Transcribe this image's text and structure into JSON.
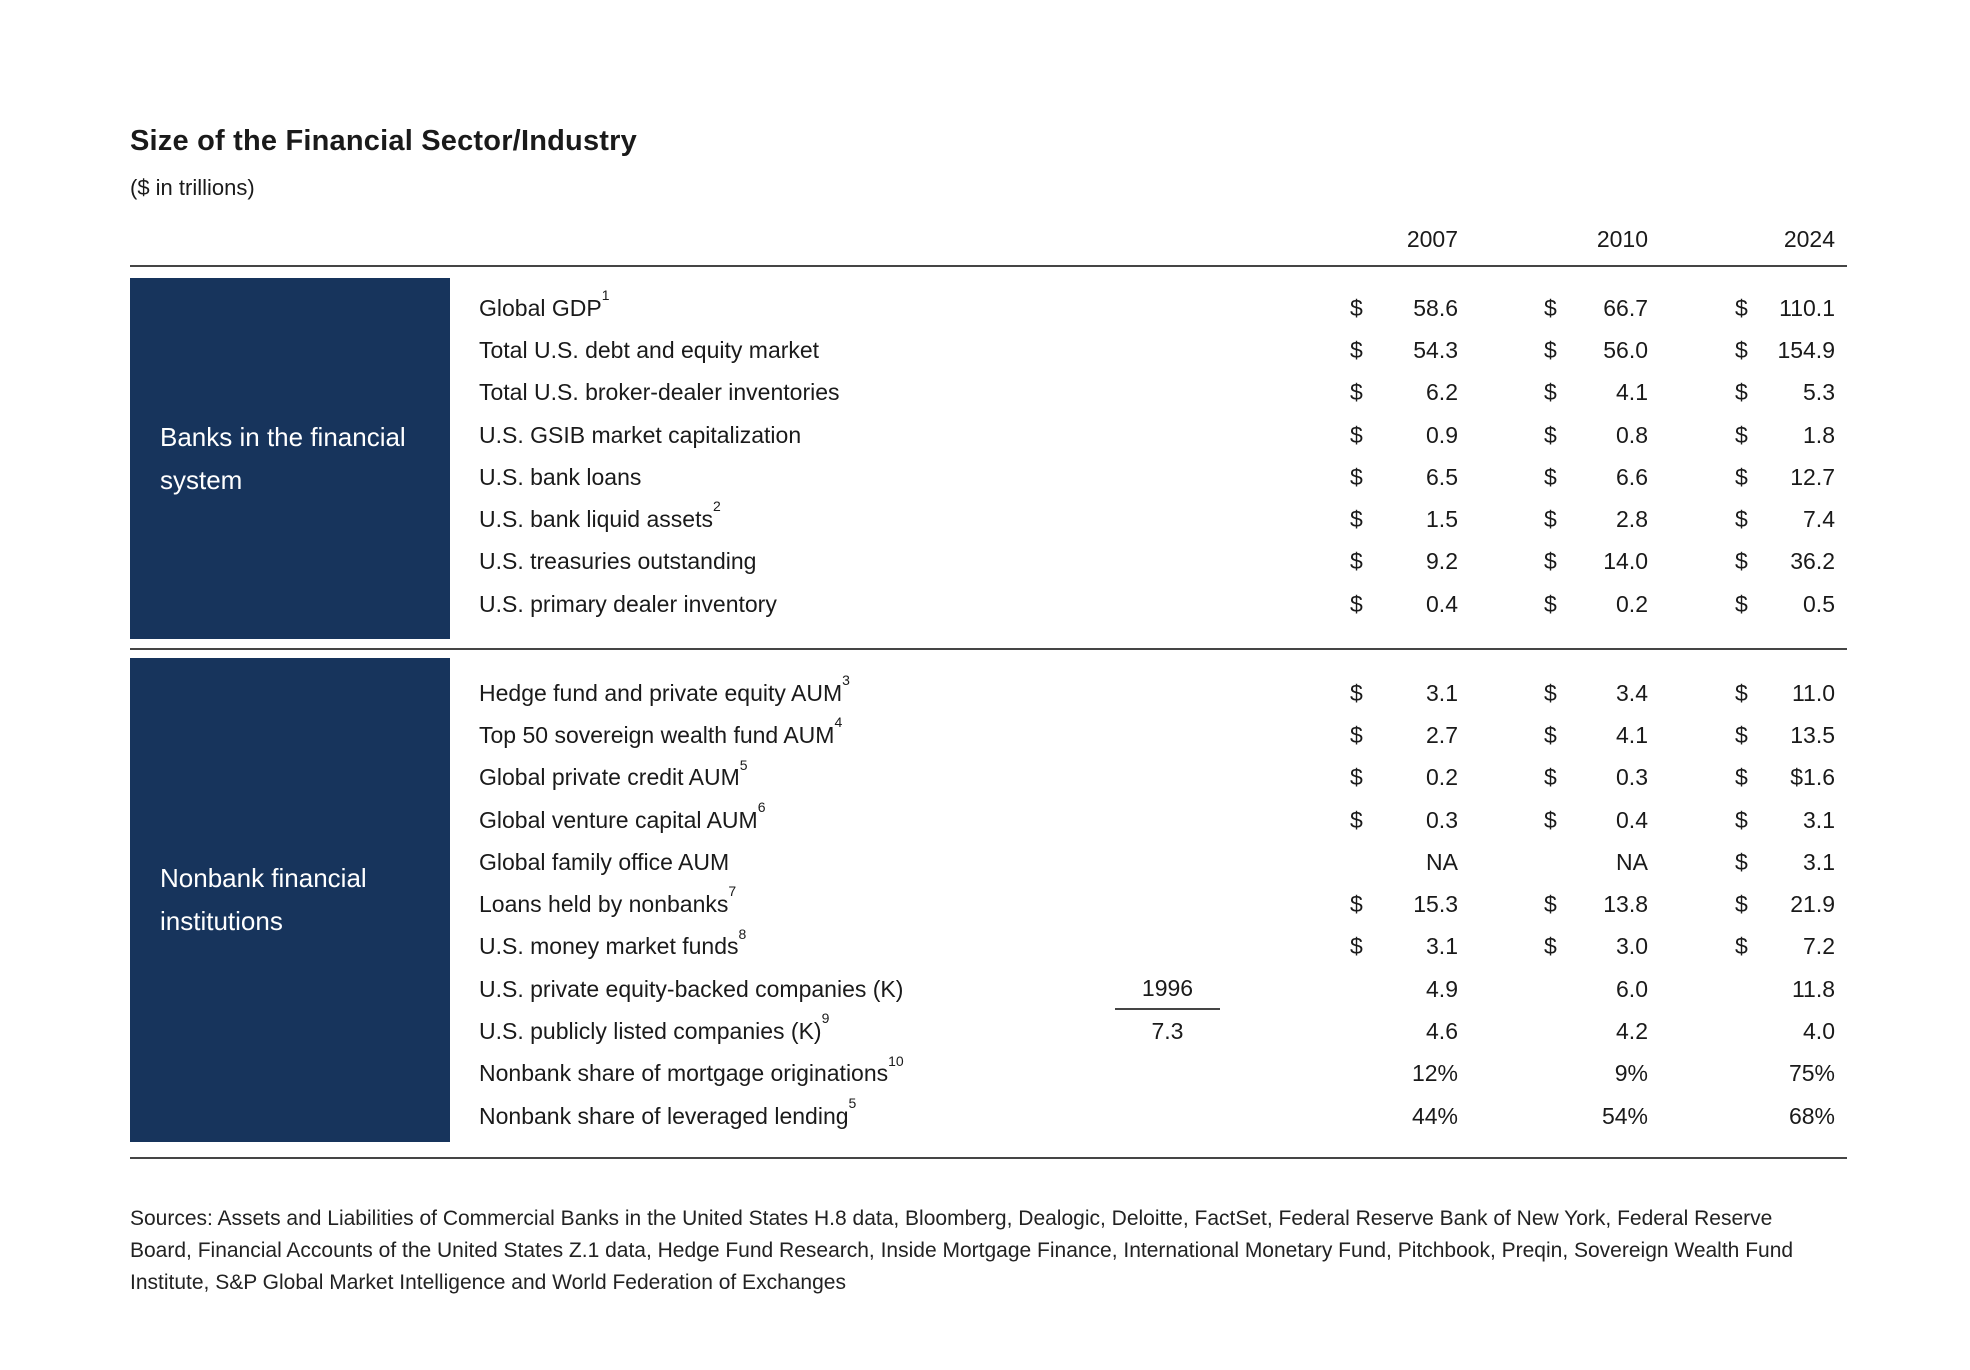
{
  "title": "Size of the Financial Sector/Industry",
  "subtitle": "($ in trillions)",
  "columns": [
    "2007",
    "2010",
    "2024"
  ],
  "colors": {
    "navy": "#17345C",
    "rule": "#454545",
    "text": "#1A1A1A"
  },
  "sections": [
    {
      "label": "Banks in the financial system",
      "rows": [
        {
          "label": "Global GDP",
          "footnote": "1",
          "values": [
            {
              "cur": "$",
              "val": "58.6"
            },
            {
              "cur": "$",
              "val": "66.7"
            },
            {
              "cur": "$",
              "val": "110.1"
            }
          ]
        },
        {
          "label": "Total U.S. debt and equity market",
          "footnote": "",
          "values": [
            {
              "cur": "$",
              "val": "54.3"
            },
            {
              "cur": "$",
              "val": "56.0"
            },
            {
              "cur": "$",
              "val": "154.9"
            }
          ]
        },
        {
          "label": "Total U.S. broker-dealer inventories",
          "footnote": "",
          "values": [
            {
              "cur": "$",
              "val": "6.2"
            },
            {
              "cur": "$",
              "val": "4.1"
            },
            {
              "cur": "$",
              "val": "5.3"
            }
          ]
        },
        {
          "label": "U.S. GSIB market capitalization",
          "footnote": "",
          "values": [
            {
              "cur": "$",
              "val": "0.9"
            },
            {
              "cur": "$",
              "val": "0.8"
            },
            {
              "cur": "$",
              "val": "1.8"
            }
          ]
        },
        {
          "label": "U.S. bank loans",
          "footnote": "",
          "values": [
            {
              "cur": "$",
              "val": "6.5"
            },
            {
              "cur": "$",
              "val": "6.6"
            },
            {
              "cur": "$",
              "val": "12.7"
            }
          ]
        },
        {
          "label": "U.S. bank liquid assets",
          "footnote": "2",
          "values": [
            {
              "cur": "$",
              "val": "1.5"
            },
            {
              "cur": "$",
              "val": "2.8"
            },
            {
              "cur": "$",
              "val": "7.4"
            }
          ]
        },
        {
          "label": "U.S. treasuries outstanding",
          "footnote": "",
          "values": [
            {
              "cur": "$",
              "val": "9.2"
            },
            {
              "cur": "$",
              "val": "14.0"
            },
            {
              "cur": "$",
              "val": "36.2"
            }
          ]
        },
        {
          "label": "U.S. primary dealer inventory",
          "footnote": "",
          "values": [
            {
              "cur": "$",
              "val": "0.4"
            },
            {
              "cur": "$",
              "val": "0.2"
            },
            {
              "cur": "$",
              "val": "0.5"
            }
          ]
        }
      ]
    },
    {
      "label": "Nonbank financial institutions",
      "rows": [
        {
          "label": "Hedge fund and private equity AUM",
          "footnote": "3",
          "values": [
            {
              "cur": "$",
              "val": "3.1"
            },
            {
              "cur": "$",
              "val": "3.4"
            },
            {
              "cur": "$",
              "val": "11.0"
            }
          ]
        },
        {
          "label": "Top 50 sovereign wealth fund AUM",
          "footnote": "4",
          "values": [
            {
              "cur": "$",
              "val": "2.7"
            },
            {
              "cur": "$",
              "val": "4.1"
            },
            {
              "cur": "$",
              "val": "13.5"
            }
          ]
        },
        {
          "label": "Global private credit AUM",
          "footnote": "5",
          "values": [
            {
              "cur": "$",
              "val": "0.2"
            },
            {
              "cur": "$",
              "val": "0.3"
            },
            {
              "cur": "$",
              "val": "$1.6"
            }
          ]
        },
        {
          "label": "Global venture capital AUM",
          "footnote": "6",
          "values": [
            {
              "cur": "$",
              "val": "0.3"
            },
            {
              "cur": "$",
              "val": "0.4"
            },
            {
              "cur": "$",
              "val": "3.1"
            }
          ]
        },
        {
          "label": "Global family office AUM",
          "footnote": "",
          "values": [
            {
              "cur": "",
              "val": "NA"
            },
            {
              "cur": "",
              "val": "NA"
            },
            {
              "cur": "$",
              "val": "3.1"
            }
          ]
        },
        {
          "label": "Loans held by nonbanks",
          "footnote": "7",
          "values": [
            {
              "cur": "$",
              "val": "15.3"
            },
            {
              "cur": "$",
              "val": "13.8"
            },
            {
              "cur": "$",
              "val": "21.9"
            }
          ]
        },
        {
          "label": "U.S. money market funds",
          "footnote": "8",
          "values": [
            {
              "cur": "$",
              "val": "3.1"
            },
            {
              "cur": "$",
              "val": "3.0"
            },
            {
              "cur": "$",
              "val": "7.2"
            }
          ]
        },
        {
          "label": "U.S. private equity-backed companies (K)",
          "footnote": "",
          "extra": {
            "text": "1996",
            "underline": true
          },
          "values": [
            {
              "cur": "",
              "val": "4.9"
            },
            {
              "cur": "",
              "val": "6.0"
            },
            {
              "cur": "",
              "val": "11.8"
            }
          ]
        },
        {
          "label": "U.S. publicly listed companies (K)",
          "footnote": "9",
          "extra": {
            "text": "7.3",
            "underline": false
          },
          "values": [
            {
              "cur": "",
              "val": "4.6"
            },
            {
              "cur": "",
              "val": "4.2"
            },
            {
              "cur": "",
              "val": "4.0"
            }
          ]
        },
        {
          "label": "Nonbank share of mortgage originations",
          "footnote": "10",
          "values": [
            {
              "cur": "",
              "val": "12%"
            },
            {
              "cur": "",
              "val": "9%"
            },
            {
              "cur": "",
              "val": "75%"
            }
          ]
        },
        {
          "label": "Nonbank share of leveraged lending",
          "footnote": "5",
          "values": [
            {
              "cur": "",
              "val": "44%"
            },
            {
              "cur": "",
              "val": "54%"
            },
            {
              "cur": "",
              "val": "68%"
            }
          ]
        }
      ]
    }
  ],
  "sources": [
    "Sources: Assets and Liabilities of Commercial Banks in the United States H.8 data, Bloomberg, Dealogic, Deloitte, FactSet, Federal Reserve Bank of New York, Federal Reserve",
    "Board, Financial Accounts of the United States Z.1 data, Hedge Fund Research, Inside Mortgage Finance, International Monetary Fund, Pitchbook, Preqin, Sovereign Wealth Fund",
    "Institute, S&P Global Market Intelligence and World Federation of Exchanges"
  ]
}
